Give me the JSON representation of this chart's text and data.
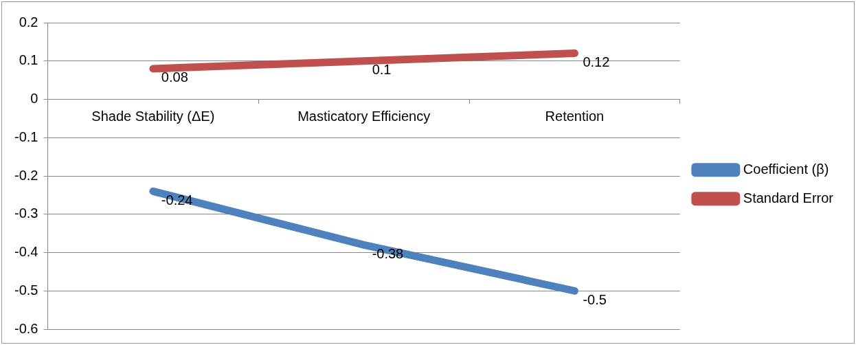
{
  "chart_data": {
    "type": "line",
    "categories": [
      "Shade Stability (ΔE)",
      "Masticatory Efficiency",
      "Retention"
    ],
    "series": [
      {
        "name": "Coefficient (β)",
        "color": "#4f81bd",
        "values": [
          -0.24,
          -0.38,
          -0.5
        ]
      },
      {
        "name": "Standard Error",
        "color": "#c0504d",
        "values": [
          0.08,
          0.1,
          0.12
        ]
      }
    ],
    "ylim": [
      -0.6,
      0.2
    ],
    "yticks": [
      -0.6,
      -0.5,
      -0.4,
      -0.3,
      -0.2,
      -0.1,
      0,
      0.1,
      0.2
    ],
    "grid": "y",
    "legend": "right",
    "data_labels": true,
    "marker": "none",
    "line_style": "solid"
  }
}
